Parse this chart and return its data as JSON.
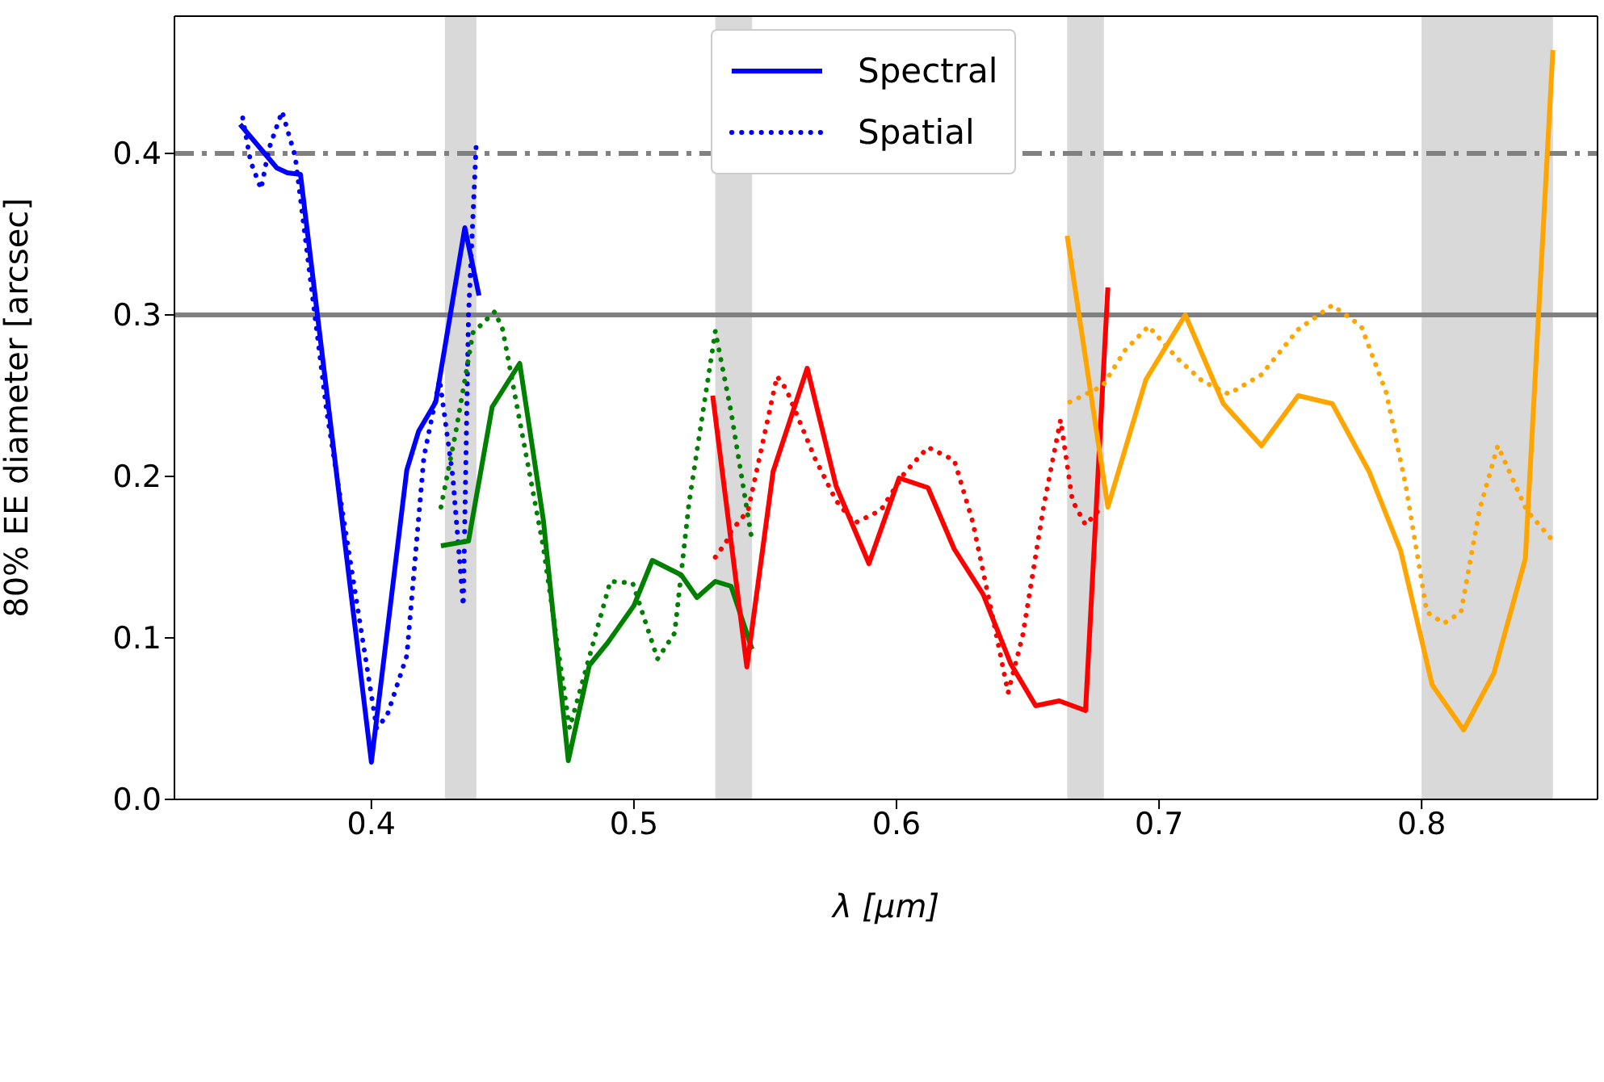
{
  "chart_data": {
    "type": "line",
    "xlabel": "λ [μm]",
    "ylabel": "80% EE diameter [arcsec]",
    "xlim": [
      0.325,
      0.867
    ],
    "ylim": [
      0,
      0.485
    ],
    "xticks": [
      0.4,
      0.5,
      0.6,
      0.7,
      0.8
    ],
    "yticks": [
      {
        "value": 0,
        "label": "0.0"
      },
      0.1,
      0.2,
      0.3,
      {
        "value": 0.4,
        "label": "0.4"
      }
    ],
    "legend": "top",
    "grid": false,
    "ref_lines": [
      {
        "axis": "y",
        "value": 0.4,
        "color": "#808080",
        "line_style": "dashdot"
      },
      {
        "axis": "y",
        "value": 0.3,
        "color": "#808080",
        "line_style": "solid"
      }
    ],
    "bands": [
      {
        "axis": "x",
        "from": 0.428,
        "to": 0.44,
        "color": "#d9d9d9"
      },
      {
        "axis": "x",
        "from": 0.531,
        "to": 0.545,
        "color": "#d9d9d9"
      },
      {
        "axis": "x",
        "from": 0.665,
        "to": 0.679,
        "color": "#d9d9d9"
      },
      {
        "axis": "x",
        "from": 0.8,
        "to": 0.85,
        "color": "#d9d9d9"
      }
    ],
    "series": [
      {
        "name": "Spectral",
        "color": "#0000ff",
        "line_style": "solid",
        "x": [
          0.35,
          0.364,
          0.368,
          0.373,
          0.4,
          0.4135,
          0.418,
          0.4245,
          0.4356,
          0.441
        ],
        "values": [
          0.418,
          0.391,
          0.388,
          0.387,
          0.023,
          0.204,
          0.228,
          0.246,
          0.354,
          0.312
        ]
      },
      {
        "name": "Spatial",
        "color": "#0000ff",
        "line_style": "dotted",
        "x": [
          0.351,
          0.354,
          0.358,
          0.361,
          0.366,
          0.371,
          0.383,
          0.402,
          0.406,
          0.4135,
          0.42,
          0.426,
          0.431,
          0.435,
          0.437,
          0.44
        ],
        "values": [
          0.422,
          0.395,
          0.378,
          0.403,
          0.426,
          0.398,
          0.24,
          0.044,
          0.052,
          0.089,
          0.212,
          0.26,
          0.2,
          0.12,
          0.3,
          0.408
        ]
      },
      {
        "color": "#008000",
        "line_style": "solid",
        "x": [
          0.4265,
          0.437,
          0.446,
          0.4565,
          0.4655,
          0.475,
          0.483,
          0.49,
          0.5,
          0.507,
          0.518,
          0.524,
          0.531,
          0.537,
          0.545
        ],
        "values": [
          0.157,
          0.16,
          0.243,
          0.27,
          0.173,
          0.024,
          0.083,
          0.097,
          0.12,
          0.148,
          0.139,
          0.125,
          0.135,
          0.132,
          0.093
        ]
      },
      {
        "color": "#008000",
        "line_style": "dotted",
        "x": [
          0.4265,
          0.432,
          0.4387,
          0.447,
          0.45,
          0.4655,
          0.4755,
          0.484,
          0.491,
          0.4995,
          0.509,
          0.5155,
          0.521,
          0.531,
          0.537,
          0.545
        ],
        "values": [
          0.181,
          0.226,
          0.289,
          0.302,
          0.291,
          0.156,
          0.044,
          0.094,
          0.135,
          0.134,
          0.087,
          0.103,
          0.184,
          0.29,
          0.24,
          0.16
        ]
      },
      {
        "color": "#ff0000",
        "line_style": "solid",
        "x": [
          0.53,
          0.543,
          0.553,
          0.566,
          0.577,
          0.5895,
          0.601,
          0.612,
          0.622,
          0.633,
          0.6435,
          0.653,
          0.662,
          0.672,
          0.6805
        ],
        "values": [
          0.25,
          0.082,
          0.203,
          0.267,
          0.194,
          0.146,
          0.199,
          0.193,
          0.155,
          0.127,
          0.084,
          0.058,
          0.061,
          0.055,
          0.317
        ]
      },
      {
        "color": "#ff0000",
        "line_style": "dotted",
        "x": [
          0.531,
          0.535,
          0.537,
          0.5435,
          0.5545,
          0.558,
          0.569,
          0.577,
          0.584,
          0.594,
          0.603,
          0.612,
          0.622,
          0.629,
          0.637,
          0.6425,
          0.648,
          0.656,
          0.6625,
          0.667,
          0.672,
          0.677
        ],
        "values": [
          0.15,
          0.159,
          0.166,
          0.179,
          0.262,
          0.254,
          0.211,
          0.185,
          0.171,
          0.179,
          0.202,
          0.218,
          0.21,
          0.172,
          0.11,
          0.066,
          0.101,
          0.181,
          0.235,
          0.185,
          0.17,
          0.179
        ]
      },
      {
        "color": "#ffa500",
        "line_style": "solid",
        "x": [
          0.665,
          0.6805,
          0.695,
          0.71,
          0.7245,
          0.739,
          0.753,
          0.766,
          0.78,
          0.792,
          0.804,
          0.816,
          0.8275,
          0.8395,
          0.85
        ],
        "values": [
          0.349,
          0.181,
          0.26,
          0.3,
          0.245,
          0.219,
          0.25,
          0.245,
          0.203,
          0.154,
          0.071,
          0.043,
          0.078,
          0.149,
          0.464
        ]
      },
      {
        "color": "#ffa500",
        "line_style": "dotted",
        "x": [
          0.666,
          0.6785,
          0.687,
          0.696,
          0.707,
          0.7165,
          0.7265,
          0.739,
          0.753,
          0.766,
          0.777,
          0.7865,
          0.794,
          0.802,
          0.8085,
          0.815,
          0.822,
          0.829,
          0.84,
          0.849
        ],
        "values": [
          0.246,
          0.256,
          0.278,
          0.293,
          0.273,
          0.259,
          0.251,
          0.263,
          0.291,
          0.306,
          0.293,
          0.252,
          0.194,
          0.116,
          0.109,
          0.116,
          0.179,
          0.219,
          0.179,
          0.162
        ]
      }
    ]
  }
}
